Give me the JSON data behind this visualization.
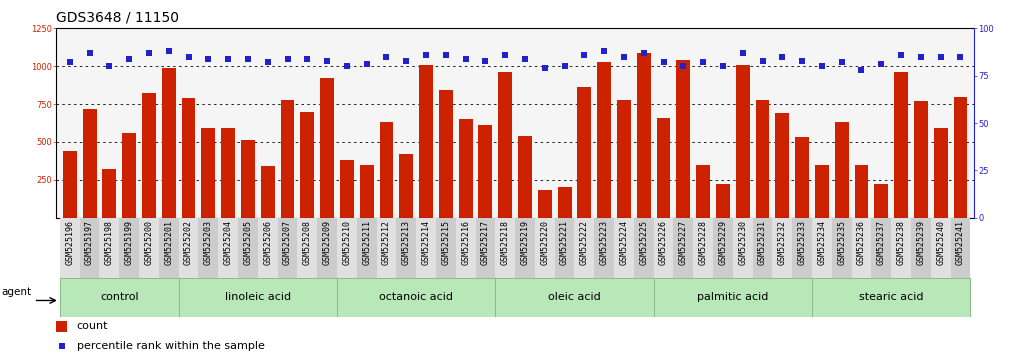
{
  "title": "GDS3648 / 11150",
  "samples": [
    "GSM525196",
    "GSM525197",
    "GSM525198",
    "GSM525199",
    "GSM525200",
    "GSM525201",
    "GSM525202",
    "GSM525203",
    "GSM525204",
    "GSM525205",
    "GSM525206",
    "GSM525207",
    "GSM525208",
    "GSM525209",
    "GSM525210",
    "GSM525211",
    "GSM525212",
    "GSM525213",
    "GSM525214",
    "GSM525215",
    "GSM525216",
    "GSM525217",
    "GSM525218",
    "GSM525219",
    "GSM525220",
    "GSM525221",
    "GSM525222",
    "GSM525223",
    "GSM525224",
    "GSM525225",
    "GSM525226",
    "GSM525227",
    "GSM525228",
    "GSM525229",
    "GSM525230",
    "GSM525231",
    "GSM525232",
    "GSM525233",
    "GSM525234",
    "GSM525235",
    "GSM525236",
    "GSM525237",
    "GSM525238",
    "GSM525239",
    "GSM525240",
    "GSM525241"
  ],
  "bar_values": [
    440,
    720,
    320,
    560,
    820,
    990,
    790,
    590,
    590,
    510,
    340,
    780,
    700,
    920,
    380,
    350,
    630,
    420,
    1010,
    840,
    650,
    610,
    960,
    540,
    180,
    200,
    860,
    1030,
    780,
    1090,
    660,
    1040,
    350,
    220,
    1010,
    780,
    690,
    530,
    350,
    630,
    350,
    220,
    960,
    770,
    590,
    800
  ],
  "percentile_values": [
    82,
    87,
    80,
    84,
    87,
    88,
    85,
    84,
    84,
    84,
    82,
    84,
    84,
    83,
    80,
    81,
    85,
    83,
    86,
    86,
    84,
    83,
    86,
    84,
    79,
    80,
    86,
    88,
    85,
    87,
    82,
    80,
    82,
    80,
    87,
    83,
    85,
    83,
    80,
    82,
    78,
    81,
    86,
    85,
    85,
    85
  ],
  "groups": [
    {
      "label": "control",
      "start": 0,
      "end": 6
    },
    {
      "label": "linoleic acid",
      "start": 6,
      "end": 14
    },
    {
      "label": "octanoic acid",
      "start": 14,
      "end": 22
    },
    {
      "label": "oleic acid",
      "start": 22,
      "end": 30
    },
    {
      "label": "palmitic acid",
      "start": 30,
      "end": 38
    },
    {
      "label": "stearic acid",
      "start": 38,
      "end": 46
    }
  ],
  "bar_color": "#cc2200",
  "dot_color": "#2222cc",
  "ylim_left": [
    0,
    1250
  ],
  "ylim_right": [
    0,
    100
  ],
  "yticks_left": [
    250,
    500,
    750,
    1000,
    1250
  ],
  "yticks_right": [
    0,
    25,
    50,
    75,
    100
  ],
  "grid_values": [
    250,
    500,
    750,
    1000
  ],
  "bg_plot": "#f5f5f5",
  "bg_label_even": "#e0e0e0",
  "bg_label_odd": "#cccccc",
  "bg_group": "#b8e8b8",
  "agent_label": "agent",
  "legend_count": "count",
  "legend_percentile": "percentile rank within the sample",
  "title_fontsize": 10,
  "tick_fontsize": 6.0,
  "group_fontsize": 8,
  "legend_fontsize": 8
}
